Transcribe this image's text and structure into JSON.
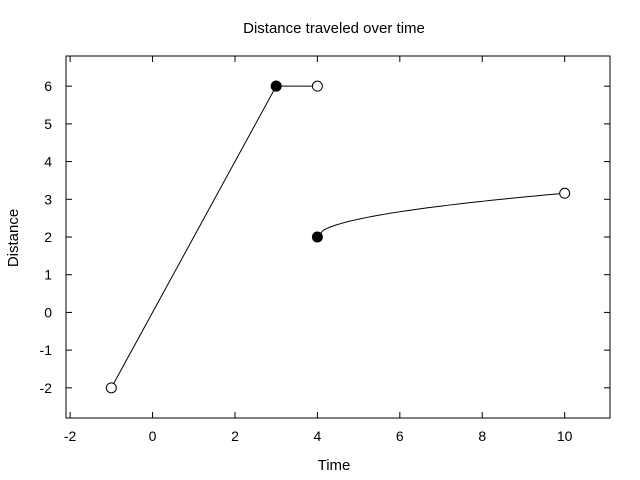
{
  "chart_data": {
    "type": "line",
    "title": "Distance traveled over time",
    "xlabel": "Time",
    "ylabel": "Distance",
    "xlim": [
      -2.1,
      11.1
    ],
    "ylim": [
      -2.8,
      6.8
    ],
    "x_ticks": [
      -2,
      0,
      2,
      4,
      6,
      8,
      10
    ],
    "y_ticks": [
      -2,
      -1,
      0,
      1,
      2,
      3,
      4,
      5,
      6
    ],
    "grid": false,
    "series": [
      {
        "points": [
          {
            "x": -1,
            "y": -2,
            "marker": "open"
          },
          {
            "x": 3,
            "y": 6,
            "marker": "filled"
          }
        ]
      },
      {
        "points": [
          {
            "x": 3,
            "y": 6,
            "marker": "filled"
          },
          {
            "x": 4,
            "y": 6,
            "marker": "open"
          }
        ]
      },
      {
        "points": [
          {
            "x": 4,
            "y": 2,
            "marker": "filled"
          },
          {
            "x": 10,
            "y": 3.16,
            "marker": "open"
          }
        ],
        "curve": "sqrt"
      }
    ]
  }
}
